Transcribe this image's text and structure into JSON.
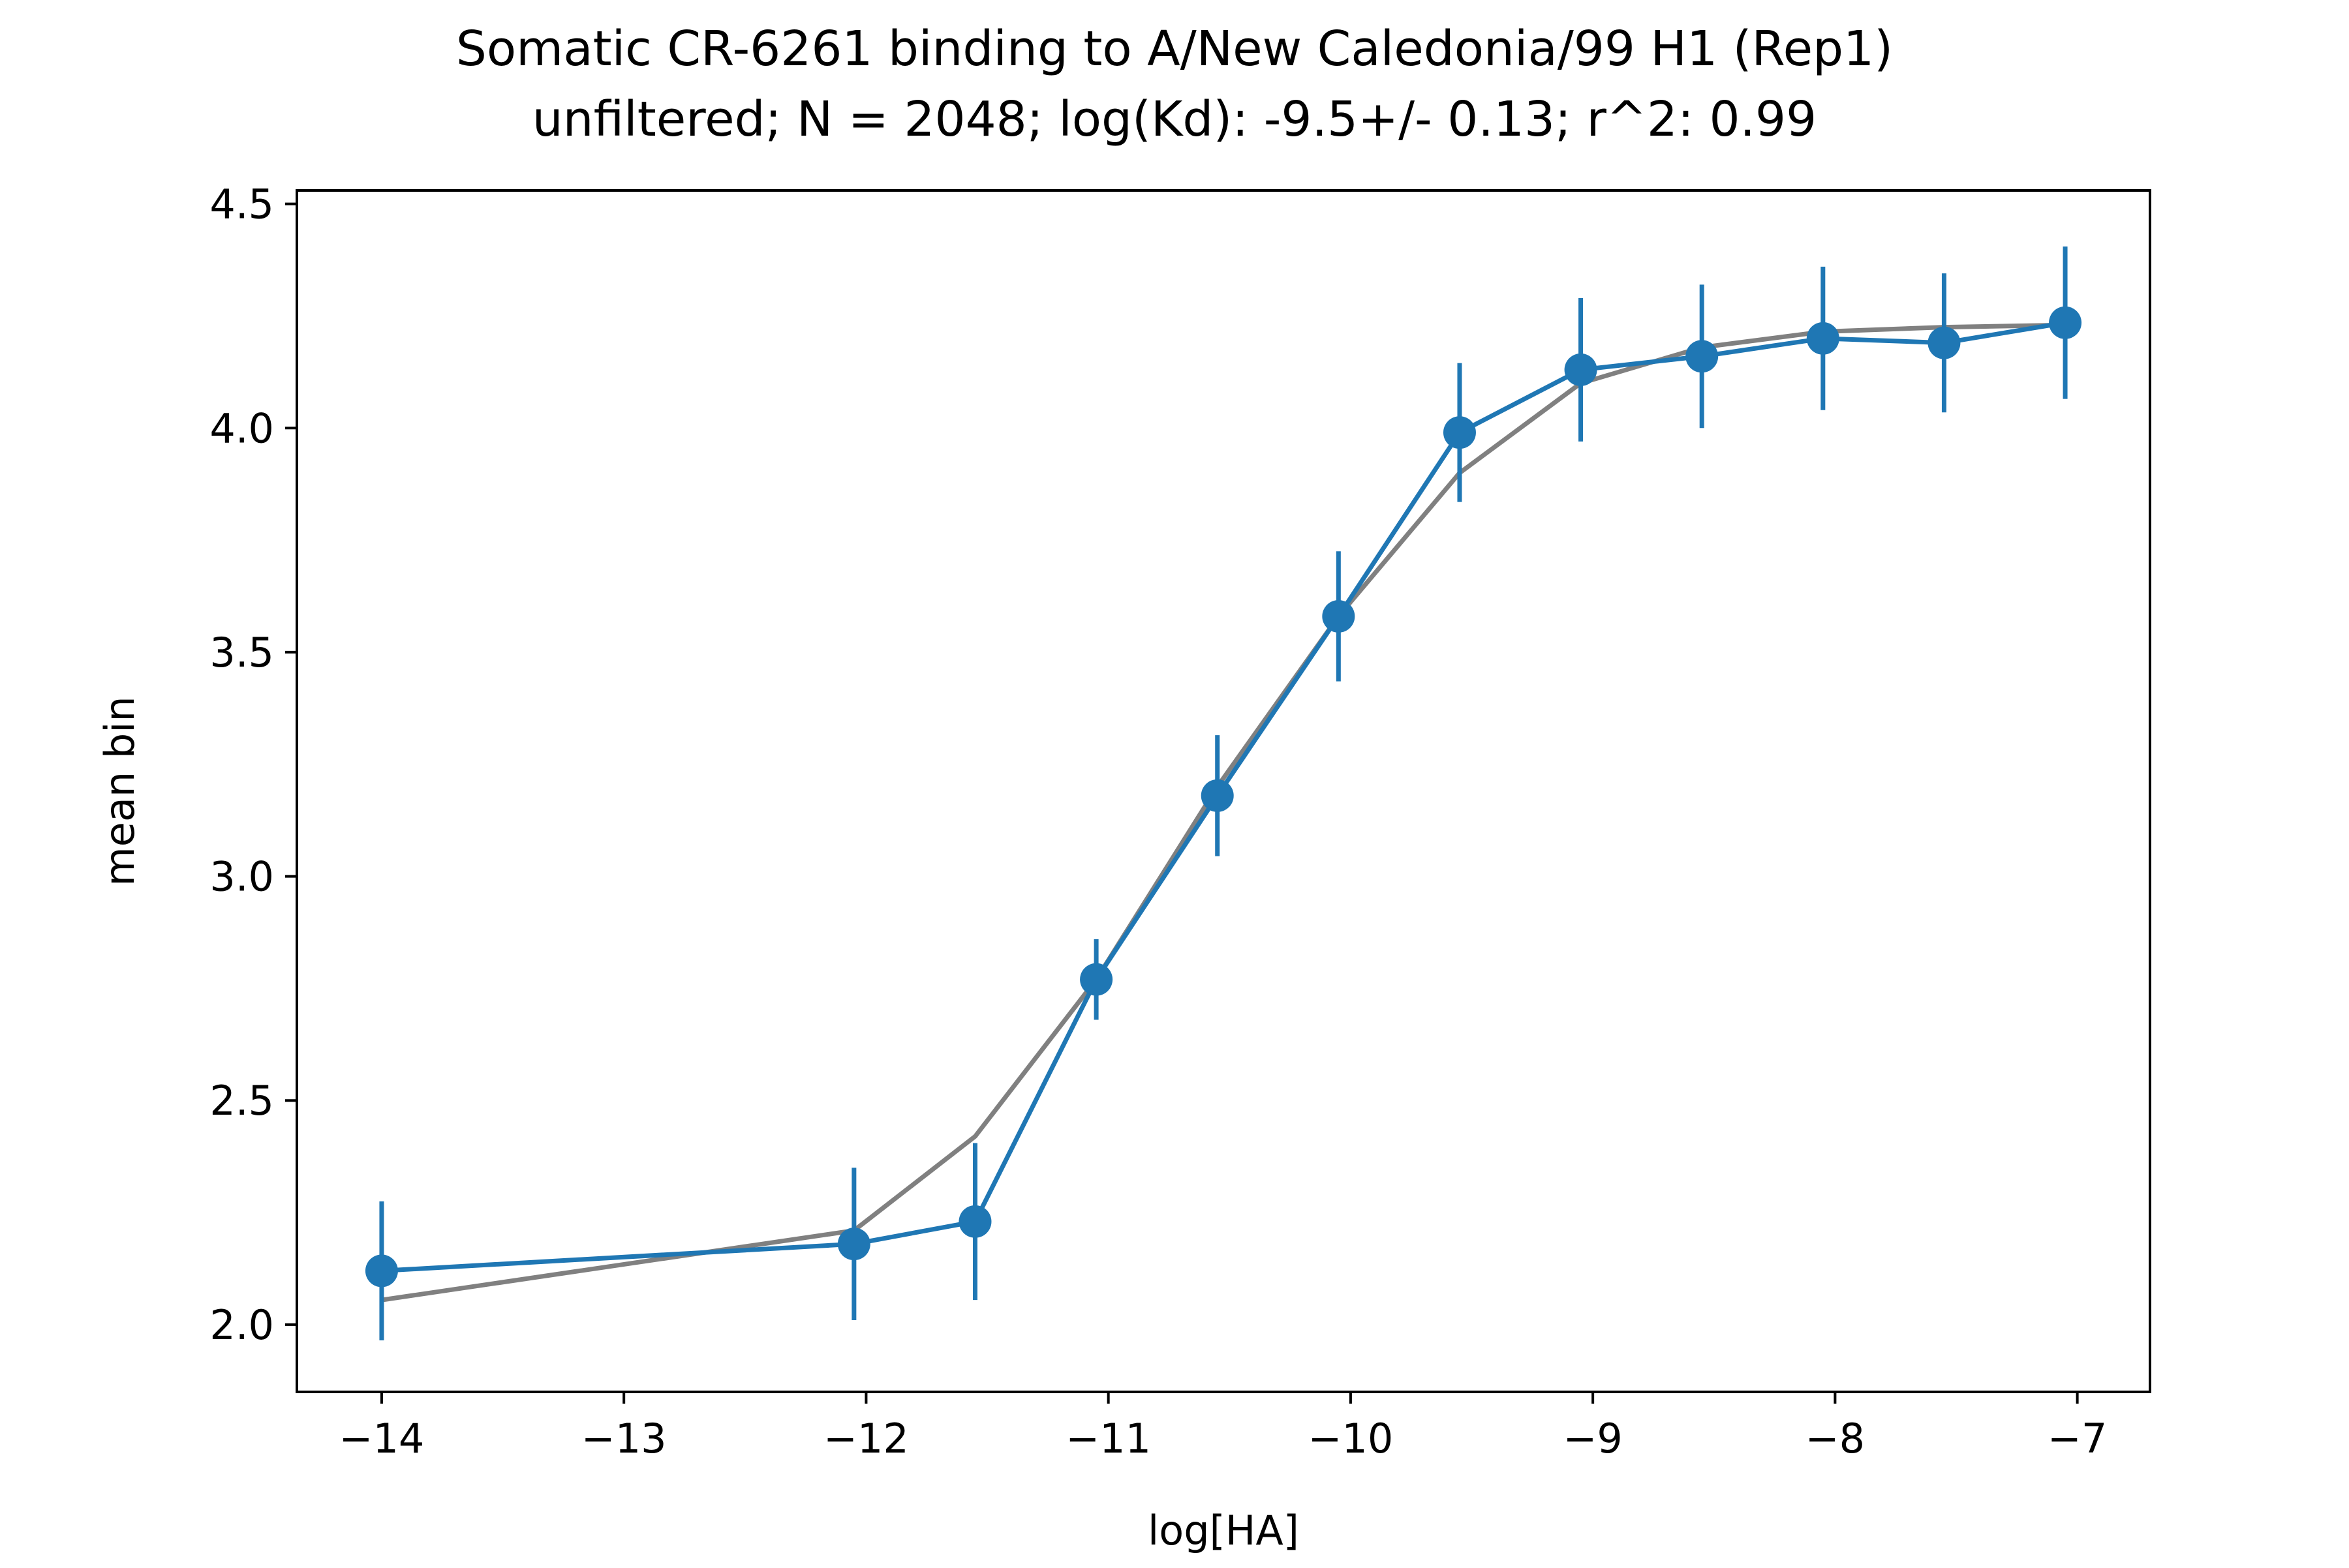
{
  "chart_data": {
    "type": "line",
    "title": "Somatic CR-6261 binding to A/New Caledonia/99 H1 (Rep1)",
    "subtitle": "unfiltered; N = 2048; log(Kd): -9.5+/- 0.13; r^2: 0.99",
    "xlabel": "log[HA]",
    "ylabel": "mean bin",
    "xlim": [
      -14.35,
      -6.7
    ],
    "ylim": [
      1.85,
      4.53
    ],
    "x_ticks": [
      -14,
      -13,
      -12,
      -11,
      -10,
      -9,
      -8,
      -7
    ],
    "x_tick_labels": [
      "−14",
      "−13",
      "−12",
      "−11",
      "−10",
      "−9",
      "−8",
      "−7"
    ],
    "y_ticks": [
      2.0,
      2.5,
      3.0,
      3.5,
      4.0,
      4.5
    ],
    "y_tick_labels": [
      "2.0",
      "2.5",
      "3.0",
      "3.5",
      "4.0",
      "4.5"
    ],
    "grid": false,
    "legend": "none",
    "series": [
      {
        "style": "markers-errorbars",
        "color": "#1f77b4",
        "x": [
          -14.0,
          -12.05,
          -11.55,
          -11.05,
          -10.55,
          -10.05,
          -9.55,
          -9.05,
          -8.55,
          -8.05,
          -7.55,
          -7.05
        ],
        "y": [
          2.12,
          2.18,
          2.23,
          2.77,
          3.18,
          3.58,
          3.99,
          4.13,
          4.16,
          4.2,
          4.19,
          4.235
        ],
        "yerr": [
          0.155,
          0.17,
          0.175,
          0.09,
          0.135,
          0.145,
          0.155,
          0.16,
          0.16,
          0.16,
          0.155,
          0.17
        ]
      },
      {
        "style": "fit-line",
        "color": "#808080",
        "x": [
          -14.0,
          -12.05,
          -11.55,
          -11.05,
          -10.55,
          -10.05,
          -9.55,
          -9.05,
          -8.55,
          -8.05,
          -7.55,
          -7.05
        ],
        "y": [
          2.055,
          2.21,
          2.42,
          2.77,
          3.2,
          3.58,
          3.9,
          4.1,
          4.18,
          4.215,
          4.225,
          4.23
        ]
      }
    ]
  }
}
